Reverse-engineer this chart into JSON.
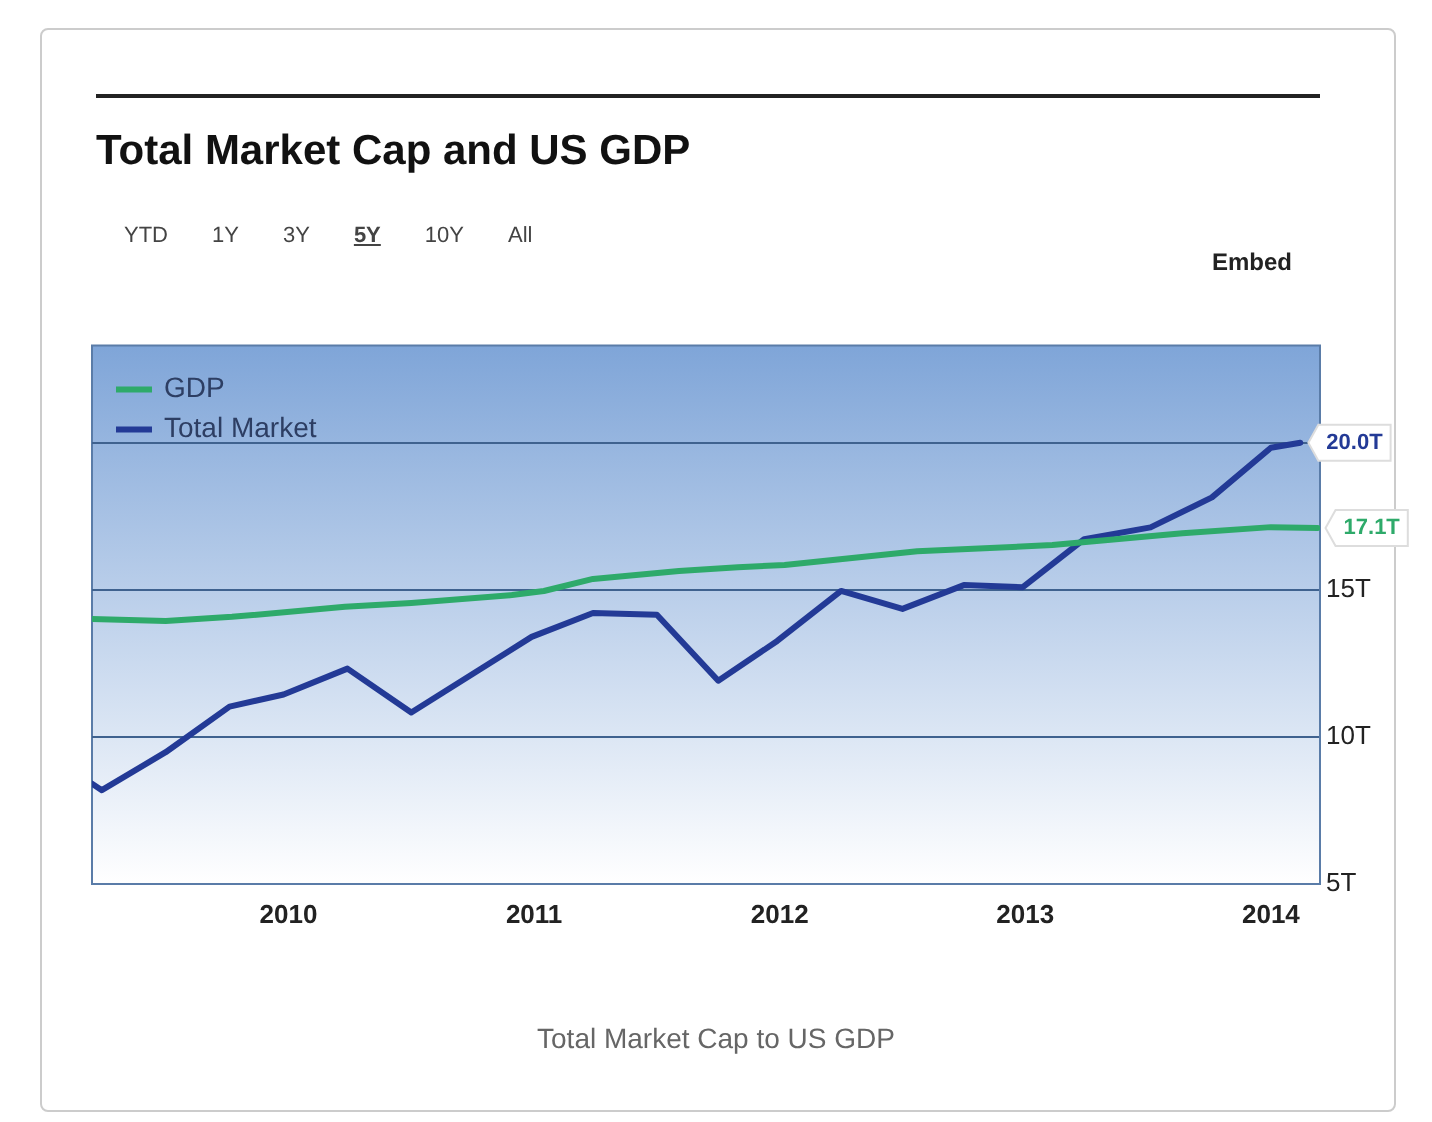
{
  "chart_data": {
    "type": "line",
    "title": "Total Market Cap and US GDP",
    "annotations": [
      "YTD",
      "1Y",
      "3Y",
      "5Y",
      "10Y",
      "All",
      "Embed",
      "Total Market Cap to US GDP"
    ],
    "xlim": [
      2009.2,
      2014.2
    ],
    "xticks": [
      2010,
      2011,
      2012,
      2013,
      2014
    ],
    "ylim": [
      5,
      23.3
    ],
    "yticks": [
      {
        "value": 5,
        "label": "5T"
      },
      {
        "value": 10,
        "label": "10T"
      },
      {
        "value": 15,
        "label": "15T"
      },
      {
        "value": 20,
        "label": null
      }
    ],
    "grid": "y",
    "legend": "top left",
    "marker": "none",
    "line_style": "solid",
    "series": [
      {
        "name": "GDP",
        "color": "#2eaa6a",
        "x": [
          2009.2,
          2009.5,
          2009.77,
          2010.23,
          2010.5,
          2010.91,
          2011.04,
          2011.24,
          2011.59,
          2011.83,
          2012.02,
          2012.56,
          2013.11,
          2013.64,
          2014.0,
          2014.19
        ],
        "values": [
          14.01,
          13.94,
          14.08,
          14.42,
          14.55,
          14.82,
          14.96,
          15.37,
          15.64,
          15.77,
          15.84,
          16.31,
          16.52,
          16.92,
          17.13,
          17.1
        ],
        "value_labels": [
          null,
          null,
          null,
          null,
          null,
          null,
          null,
          null,
          null,
          null,
          null,
          null,
          null,
          null,
          null,
          "17.1T"
        ]
      },
      {
        "name": "Total Market",
        "color": "#233a96",
        "x": [
          2009.2,
          2009.24,
          2009.5,
          2009.76,
          2009.98,
          2010.24,
          2010.5,
          2010.99,
          2011.24,
          2011.5,
          2011.75,
          2011.99,
          2012.25,
          2012.5,
          2012.75,
          2012.99,
          2013.24,
          2013.51,
          2013.76,
          2014.0,
          2014.12
        ],
        "values": [
          8.41,
          8.19,
          9.48,
          11.03,
          11.44,
          12.32,
          10.83,
          13.4,
          14.21,
          14.15,
          11.91,
          13.26,
          14.96,
          14.35,
          15.16,
          15.09,
          16.72,
          17.12,
          18.14,
          19.83,
          20.0
        ],
        "value_labels": [
          null,
          null,
          null,
          null,
          null,
          null,
          null,
          null,
          null,
          null,
          null,
          null,
          null,
          null,
          null,
          null,
          null,
          null,
          null,
          null,
          "20.0T"
        ]
      }
    ]
  }
}
